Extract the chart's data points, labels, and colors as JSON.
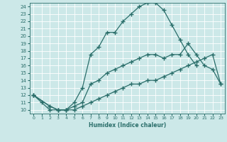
{
  "xlabel": "Humidex (Indice chaleur)",
  "bg_color": "#cce8e8",
  "grid_color": "#ffffff",
  "line_color": "#2a6e6a",
  "xlim": [
    -0.5,
    23.5
  ],
  "ylim": [
    9.5,
    24.5
  ],
  "xticks": [
    0,
    1,
    2,
    3,
    4,
    5,
    6,
    7,
    8,
    9,
    10,
    11,
    12,
    13,
    14,
    15,
    16,
    17,
    18,
    19,
    20,
    21,
    22,
    23
  ],
  "yticks": [
    10,
    11,
    12,
    13,
    14,
    15,
    16,
    17,
    18,
    19,
    20,
    21,
    22,
    23,
    24
  ],
  "curve1_x": [
    0,
    1,
    2,
    3,
    4,
    5,
    6,
    7,
    8,
    9,
    10,
    11,
    12,
    13,
    14,
    15,
    16,
    17,
    18,
    19,
    20
  ],
  "curve1_y": [
    12,
    11,
    10,
    10,
    10,
    11,
    13,
    17.5,
    18.5,
    20.5,
    20.5,
    22,
    23,
    24,
    24.5,
    24.5,
    23.5,
    21.5,
    19.5,
    17.5,
    16
  ],
  "curve2_x": [
    0,
    2,
    3,
    4,
    5,
    6,
    7,
    8,
    9,
    10,
    11,
    12,
    13,
    14,
    15,
    16,
    17,
    18,
    19,
    20,
    21,
    22,
    23
  ],
  "curve2_y": [
    12,
    10.5,
    10,
    10,
    10.5,
    11,
    13.5,
    14,
    15,
    15.5,
    16,
    16.5,
    17,
    17.5,
    17.5,
    17,
    17.5,
    17.5,
    19,
    17.5,
    16,
    15.5,
    13.5
  ],
  "curve3_x": [
    0,
    2,
    3,
    4,
    5,
    6,
    7,
    8,
    9,
    10,
    11,
    12,
    13,
    14,
    15,
    16,
    17,
    18,
    19,
    20,
    21,
    22,
    23
  ],
  "curve3_y": [
    12,
    10.5,
    10,
    10,
    10,
    10.5,
    11,
    11.5,
    12,
    12.5,
    13,
    13.5,
    13.5,
    14,
    14,
    14.5,
    15,
    15.5,
    16,
    16.5,
    17,
    17.5,
    13.5
  ]
}
